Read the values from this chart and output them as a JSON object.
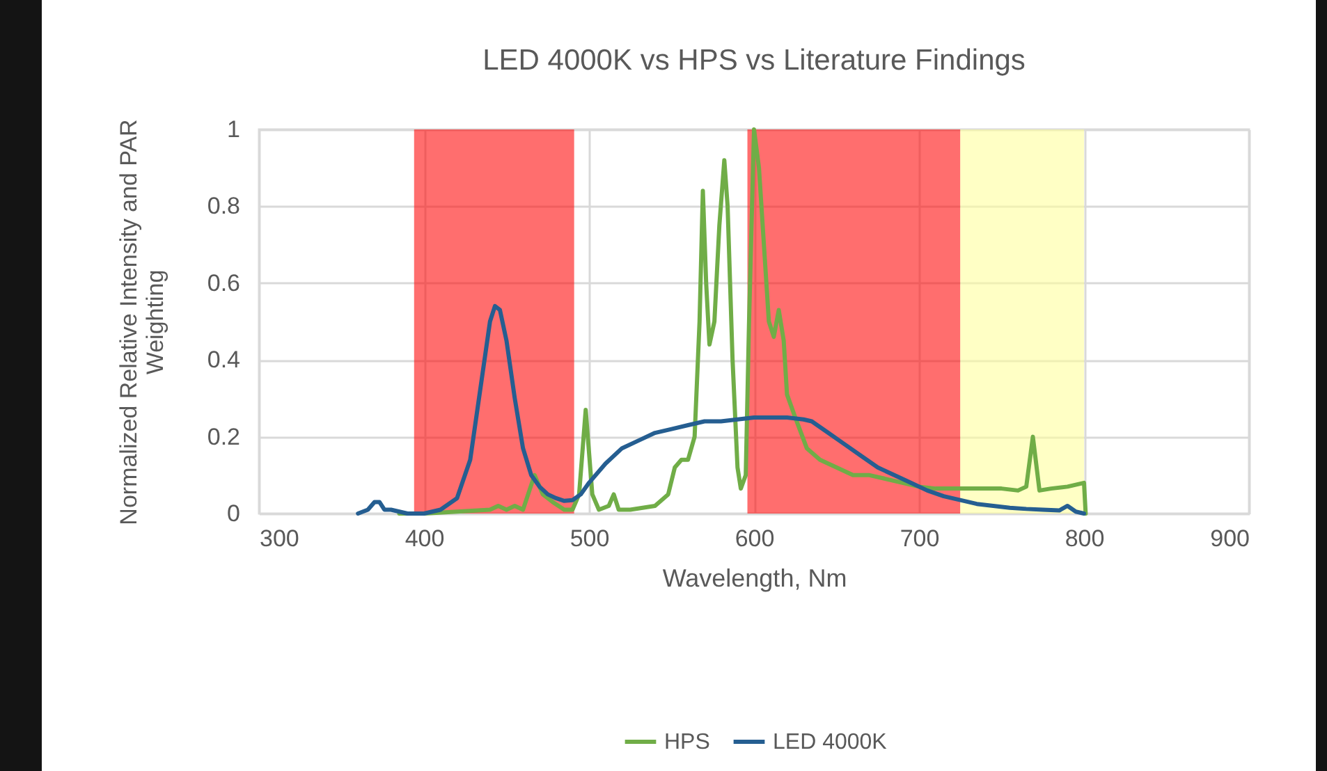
{
  "chart_data": {
    "type": "line",
    "title": "LED 4000K vs HPS vs Literature Findings",
    "xlabel": "Wavelength, Nm",
    "ylabel": "Normalized Relative Intensity and PAR Weighting",
    "xlim": [
      300,
      900
    ],
    "xticks": [
      300,
      400,
      500,
      600,
      700,
      800,
      900
    ],
    "ylim": [
      0,
      1
    ],
    "yticks": [
      0,
      0.2,
      0.4,
      0.6,
      0.8,
      1
    ],
    "grid": true,
    "legend": "bottom",
    "series": [
      {
        "name": "HPS",
        "color": "#70ad47",
        "x": [
          385,
          400,
          420,
          440,
          445,
          450,
          455,
          460,
          467,
          472,
          478,
          485,
          490,
          494,
          498,
          502,
          506,
          512,
          515,
          518,
          525,
          540,
          548,
          552,
          556,
          560,
          564,
          567,
          569,
          571,
          573,
          576,
          579,
          582,
          584,
          587,
          590,
          592,
          595,
          597,
          600,
          603,
          606,
          609,
          612,
          615,
          618,
          620,
          625,
          632,
          640,
          650,
          660,
          670,
          680,
          690,
          700,
          710,
          725,
          740,
          750,
          760,
          765,
          769,
          773,
          780,
          790,
          800,
          801
        ],
        "values": [
          0,
          0,
          0.005,
          0.01,
          0.02,
          0.01,
          0.02,
          0.01,
          0.1,
          0.05,
          0.03,
          0.01,
          0.01,
          0.05,
          0.27,
          0.05,
          0.01,
          0.02,
          0.05,
          0.01,
          0.01,
          0.02,
          0.05,
          0.12,
          0.14,
          0.14,
          0.2,
          0.5,
          0.84,
          0.6,
          0.44,
          0.5,
          0.75,
          0.92,
          0.8,
          0.4,
          0.12,
          0.065,
          0.1,
          0.5,
          1.0,
          0.9,
          0.7,
          0.5,
          0.46,
          0.53,
          0.45,
          0.31,
          0.25,
          0.17,
          0.14,
          0.12,
          0.1,
          0.1,
          0.09,
          0.08,
          0.07,
          0.065,
          0.065,
          0.065,
          0.065,
          0.06,
          0.07,
          0.2,
          0.06,
          0.065,
          0.07,
          0.08,
          0
        ]
      },
      {
        "name": "LED 4000K",
        "color": "#255e91",
        "x": [
          360,
          366,
          370,
          373,
          376,
          380,
          385,
          390,
          400,
          410,
          420,
          428,
          435,
          440,
          443,
          446,
          450,
          455,
          460,
          465,
          470,
          475,
          480,
          485,
          490,
          495,
          500,
          510,
          520,
          530,
          540,
          550,
          560,
          570,
          580,
          590,
          600,
          610,
          620,
          630,
          635,
          645,
          655,
          665,
          675,
          685,
          695,
          705,
          715,
          725,
          735,
          745,
          755,
          765,
          775,
          785,
          790,
          795,
          800
        ],
        "values": [
          0,
          0.01,
          0.03,
          0.03,
          0.01,
          0.01,
          0.005,
          0,
          0,
          0.01,
          0.04,
          0.14,
          0.35,
          0.5,
          0.54,
          0.53,
          0.45,
          0.3,
          0.17,
          0.1,
          0.07,
          0.05,
          0.04,
          0.033,
          0.035,
          0.05,
          0.08,
          0.13,
          0.17,
          0.19,
          0.21,
          0.22,
          0.23,
          0.24,
          0.24,
          0.245,
          0.25,
          0.25,
          0.25,
          0.245,
          0.24,
          0.21,
          0.18,
          0.15,
          0.12,
          0.1,
          0.08,
          0.06,
          0.045,
          0.035,
          0.025,
          0.02,
          0.015,
          0.012,
          0.01,
          0.008,
          0.02,
          0.005,
          0
        ]
      }
    ],
    "bands": [
      {
        "axis": "x",
        "from": 394,
        "to": 491,
        "color": "#ff0000"
      },
      {
        "axis": "x",
        "from": 596,
        "to": 725,
        "color": "#ff0000"
      },
      {
        "axis": "x",
        "from": 725,
        "to": 800,
        "color": "#ffff99"
      }
    ]
  }
}
